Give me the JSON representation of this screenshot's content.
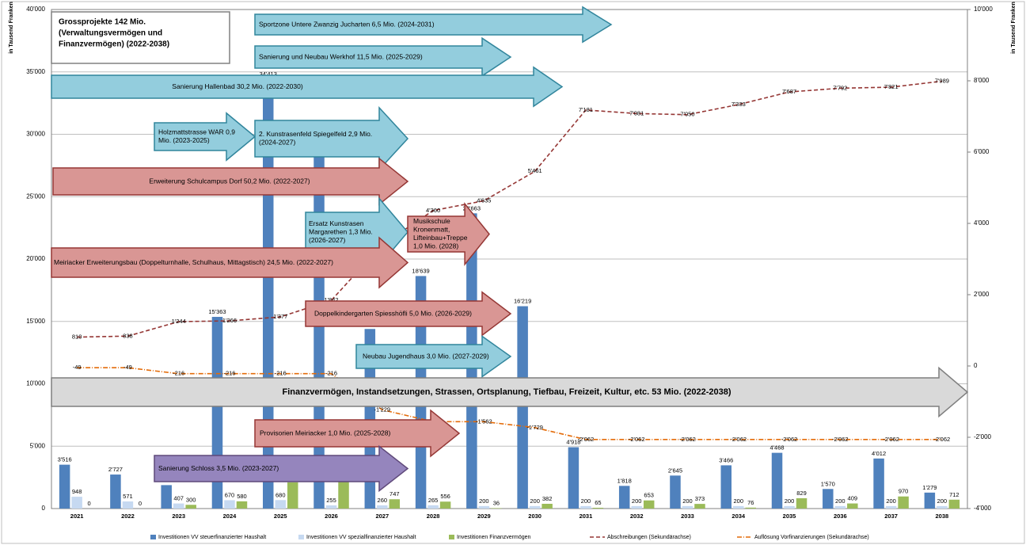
{
  "chart_data": {
    "type": "bar",
    "y_label": "in Tausend Franken",
    "y2_label": "in Tausend Franken",
    "title_lines": [
      "Grossprojekte 142 Mio.",
      "(Verwaltungsvermögen und",
      "Finanzvermögen) (2022-2038)"
    ],
    "categories": [
      "2021",
      "2022",
      "2023",
      "2024",
      "2025",
      "2026",
      "2027",
      "2028",
      "2029",
      "2030",
      "2031",
      "2032",
      "2033",
      "2034",
      "2035",
      "2036",
      "2037",
      "2038"
    ],
    "ylim": [
      0,
      40000
    ],
    "yticks": [
      {
        "value": 0,
        "label": "0"
      },
      {
        "value": 5000,
        "label": "5'000"
      },
      {
        "value": 10000,
        "label": "10'000"
      },
      {
        "value": 15000,
        "label": "15'000"
      },
      {
        "value": 20000,
        "label": "20'000"
      },
      {
        "value": 25000,
        "label": "25'000"
      },
      {
        "value": 30000,
        "label": "30'000"
      },
      {
        "value": 35000,
        "label": "35'000"
      },
      {
        "value": 40000,
        "label": "40'000"
      }
    ],
    "y2lim": [
      -4000,
      10000
    ],
    "y2ticks": [
      {
        "value": -4000,
        "label": "-4'000"
      },
      {
        "value": -2000,
        "label": "-2'000"
      },
      {
        "value": 0,
        "label": "0"
      },
      {
        "value": 2000,
        "label": "2'000"
      },
      {
        "value": 4000,
        "label": "4'000"
      },
      {
        "value": 6000,
        "label": "6'000"
      },
      {
        "value": 8000,
        "label": "8'000"
      },
      {
        "value": 10000,
        "label": "10'000"
      }
    ],
    "grid": true,
    "series": [
      {
        "name": "Investitionen VV steuerfinanzierter Haushalt",
        "type": "bar",
        "color": "#4f81bd",
        "values": [
          3516,
          2727,
          1880,
          15363,
          34413,
          31000,
          14396,
          18639,
          23663,
          16219,
          4918,
          1818,
          2645,
          3466,
          4468,
          1570,
          4012,
          1279
        ],
        "value_labels": [
          "3'516",
          "2'727",
          "1'880",
          "15'363",
          "34'413",
          null,
          "14'396",
          "18'639",
          "23'663",
          "16'219",
          "4'918",
          "1'818",
          "2'645",
          "3'466",
          "4'468",
          "1'570",
          "4'012",
          "1'279"
        ]
      },
      {
        "name": "Investitionen VV spezialfinanzierter Haushalt",
        "type": "bar",
        "color": "#c6d9f1",
        "values": [
          948,
          571,
          407,
          670,
          680,
          255,
          260,
          265,
          200,
          200,
          200,
          200,
          200,
          200,
          200,
          200,
          200,
          200
        ]
      },
      {
        "name": "Investitionen Finanzvermögen",
        "type": "bar",
        "color": "#9bbb59",
        "values": [
          0,
          0,
          300,
          580,
          2105,
          2410,
          747,
          556,
          36,
          382,
          65,
          653,
          373,
          76,
          829,
          409,
          970,
          712
        ],
        "value_labels": [
          "0",
          "0",
          "300",
          "580",
          "2'105",
          "2'410",
          "747",
          "556",
          "36",
          "382",
          "65",
          "653",
          "373",
          "76",
          "829",
          "409",
          "970",
          "712"
        ]
      },
      {
        "name": "Abschreibungen (Sekundärachse)",
        "type": "line",
        "axis": "y2",
        "color": "#953735",
        "dash": "5,3",
        "values": [
          810,
          838,
          1244,
          1266,
          1377,
          1842,
          3401,
          4360,
          4635,
          5461,
          7181,
          7081,
          7050,
          7333,
          7687,
          7792,
          7821,
          7989
        ],
        "value_labels": [
          "810",
          "838",
          "1'244",
          "1'266",
          "1'377",
          "1'842",
          "3'401",
          "4'360",
          "4'635",
          "5'461",
          "7'181",
          "7'081",
          "7'050",
          "7'333",
          "7'687",
          "7'792",
          "7'821",
          "7'989"
        ]
      },
      {
        "name": "Auflösung Vorfinanzierungen (Sekundärachse)",
        "type": "line",
        "axis": "y2",
        "color": "#e46c0a",
        "dash": "6,2,1,2",
        "values": [
          -49,
          -49,
          -216,
          -216,
          -216,
          -216,
          -1229,
          -1562,
          -1562,
          -1729,
          -2062,
          -2062,
          -2062,
          -2062,
          -2062,
          -2062,
          -2062,
          -2062
        ],
        "value_labels": [
          "-49",
          "-49",
          "-216",
          "-216",
          "-216",
          "-216",
          "-1'229",
          "-1'562",
          "-1'562",
          "-1'729",
          "-2'062",
          "-2'062",
          "-2'062",
          "-2'062",
          "-2'062",
          "-2'062",
          "-2'062",
          "-2'062"
        ]
      }
    ],
    "annotations": [
      {
        "lines": [
          "Sportzone Untere Zwanzig Jucharten 6,5 Mio. (2024-2031)"
        ]
      },
      {
        "lines": [
          "Sanierung und Neubau Werkhof 11,5 Mio. (2025-2029)"
        ]
      },
      {
        "lines": [
          "Sanierung Hallenbad 30,2 Mio. (2022-2030)"
        ]
      },
      {
        "lines": [
          "Holzmattstrasse WAR 0,9",
          "Mio. (2023-2025)"
        ]
      },
      {
        "lines": [
          "2. Kunstrasenfeld Spiegelfeld 2,9 Mio.",
          "(2024-2027)"
        ]
      },
      {
        "lines": [
          "Erweiterung Schulcampus Dorf 50,2 Mio. (2022-2027)"
        ]
      },
      {
        "lines": [
          "Ersatz Kunstrasen",
          "Margarethen 1,3 Mio.",
          "(2026-2027)"
        ]
      },
      {
        "lines": [
          "Musikschule",
          "Kronenmatt,",
          "Lifteinbau+Treppe",
          "1,0 Mio. (2028)"
        ]
      },
      {
        "lines": [
          "Meiriacker Erweiterungsbau (Doppelturnhalle, Schulhaus, Mittagstisch) 24,5 Mio. (2022-2027)"
        ]
      },
      {
        "lines": [
          "Doppelkindergarten Spiesshöfli 5,0 Mio. (2026-2029)"
        ]
      },
      {
        "lines": [
          "Neubau Jugendhaus 3,0 Mio. (2027-2029)"
        ]
      },
      {
        "lines": [
          "Finanzvermögen, Instandsetzungen, Strassen, Ortsplanung, Tiefbau, Freizeit, Kultur, etc. 53 Mio. (2022-2038)"
        ]
      },
      {
        "lines": [
          "Provisorien Meiriacker 1,0 Mio. (2025-2028)"
        ]
      },
      {
        "lines": [
          "Sanierung Schloss 3,5 Mio. (2023-2027)"
        ]
      }
    ]
  }
}
